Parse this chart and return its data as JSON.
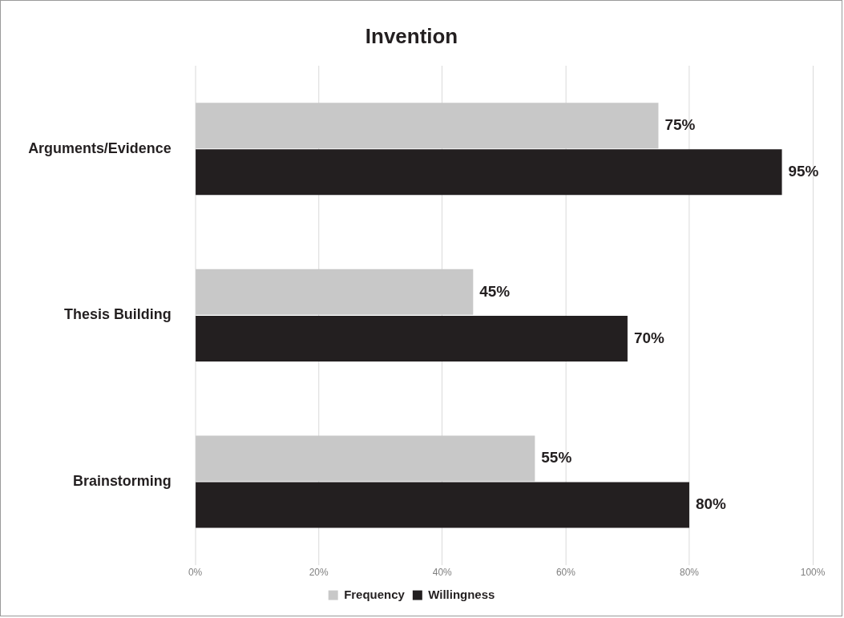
{
  "chart_data": {
    "type": "bar",
    "orientation": "horizontal",
    "title": "Invention",
    "categories": [
      "Arguments/Evidence",
      "Thesis Building",
      "Brainstorming"
    ],
    "series": [
      {
        "name": "Frequency",
        "color": "#c8c8c8",
        "values": [
          75,
          45,
          55
        ],
        "value_labels": [
          "75%",
          "45%",
          "55%"
        ]
      },
      {
        "name": "Willingness",
        "color": "#231f20",
        "values": [
          95,
          70,
          80
        ],
        "value_labels": [
          "95%",
          "70%",
          "80%"
        ]
      }
    ],
    "xlim": [
      0,
      100
    ],
    "xticks": [
      {
        "value": 0,
        "label": "0%"
      },
      {
        "value": 20,
        "label": "20%"
      },
      {
        "value": 40,
        "label": "40%"
      },
      {
        "value": 60,
        "label": "60%"
      },
      {
        "value": 80,
        "label": "80%"
      },
      {
        "value": 100,
        "label": "100%"
      }
    ],
    "grid": "x",
    "legend": "bottom"
  }
}
